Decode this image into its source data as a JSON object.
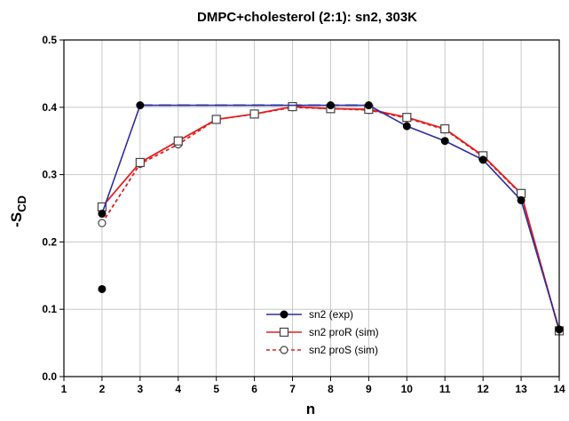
{
  "chart_data": {
    "type": "line",
    "title": "DMPC+cholesterol (2:1): sn2, 303K",
    "xlabel": "n",
    "ylabel_main": "-S",
    "ylabel_sub": "CD",
    "xlim": [
      1,
      14
    ],
    "ylim": [
      0.0,
      0.5
    ],
    "xticks": [
      1,
      2,
      3,
      4,
      5,
      6,
      7,
      8,
      9,
      10,
      11,
      12,
      13,
      14
    ],
    "yticks": [
      "0.0",
      "0.1",
      "0.2",
      "0.3",
      "0.4",
      "0.5"
    ],
    "grid": true,
    "legend_position": "bottom-center",
    "series": [
      {
        "name": "sn2 (exp)",
        "color": "#2b2f9e",
        "marker": "filled-circle",
        "line": "solid",
        "x": [
          2,
          3,
          9,
          10,
          11,
          12,
          13,
          14
        ],
        "y": [
          0.242,
          0.403,
          0.403,
          0.372,
          0.35,
          0.322,
          0.262,
          0.07
        ]
      },
      {
        "name": "sn2 proR (sim)",
        "color": "#e02020",
        "marker": "open-square",
        "line": "solid",
        "x": [
          2,
          3,
          4,
          5,
          6,
          7,
          8,
          9,
          10,
          11,
          12,
          13,
          14
        ],
        "y": [
          0.252,
          0.318,
          0.35,
          0.382,
          0.39,
          0.401,
          0.398,
          0.397,
          0.385,
          0.368,
          0.328,
          0.272,
          0.068
        ]
      },
      {
        "name": "sn2 proS (sim)",
        "color": "#e02020",
        "marker": "open-circle",
        "line": "dashed",
        "x": [
          2,
          3,
          4,
          5,
          6,
          7,
          8,
          9,
          10,
          11,
          12,
          13,
          14
        ],
        "y": [
          0.228,
          0.316,
          0.345,
          0.382,
          0.39,
          0.4,
          0.398,
          0.396,
          0.384,
          0.367,
          0.327,
          0.271,
          0.068
        ]
      }
    ],
    "extra_points": [
      {
        "x": 2,
        "y": 0.13,
        "color": "#000000",
        "marker": "filled-circle"
      },
      {
        "x": 8,
        "y": 0.403,
        "color": "#000000",
        "marker": "filled-circle"
      }
    ],
    "reference_line": {
      "x": [
        3,
        9
      ],
      "y": [
        0.403,
        0.403
      ],
      "color": "#2b2f9e",
      "style": "long-dash"
    }
  }
}
